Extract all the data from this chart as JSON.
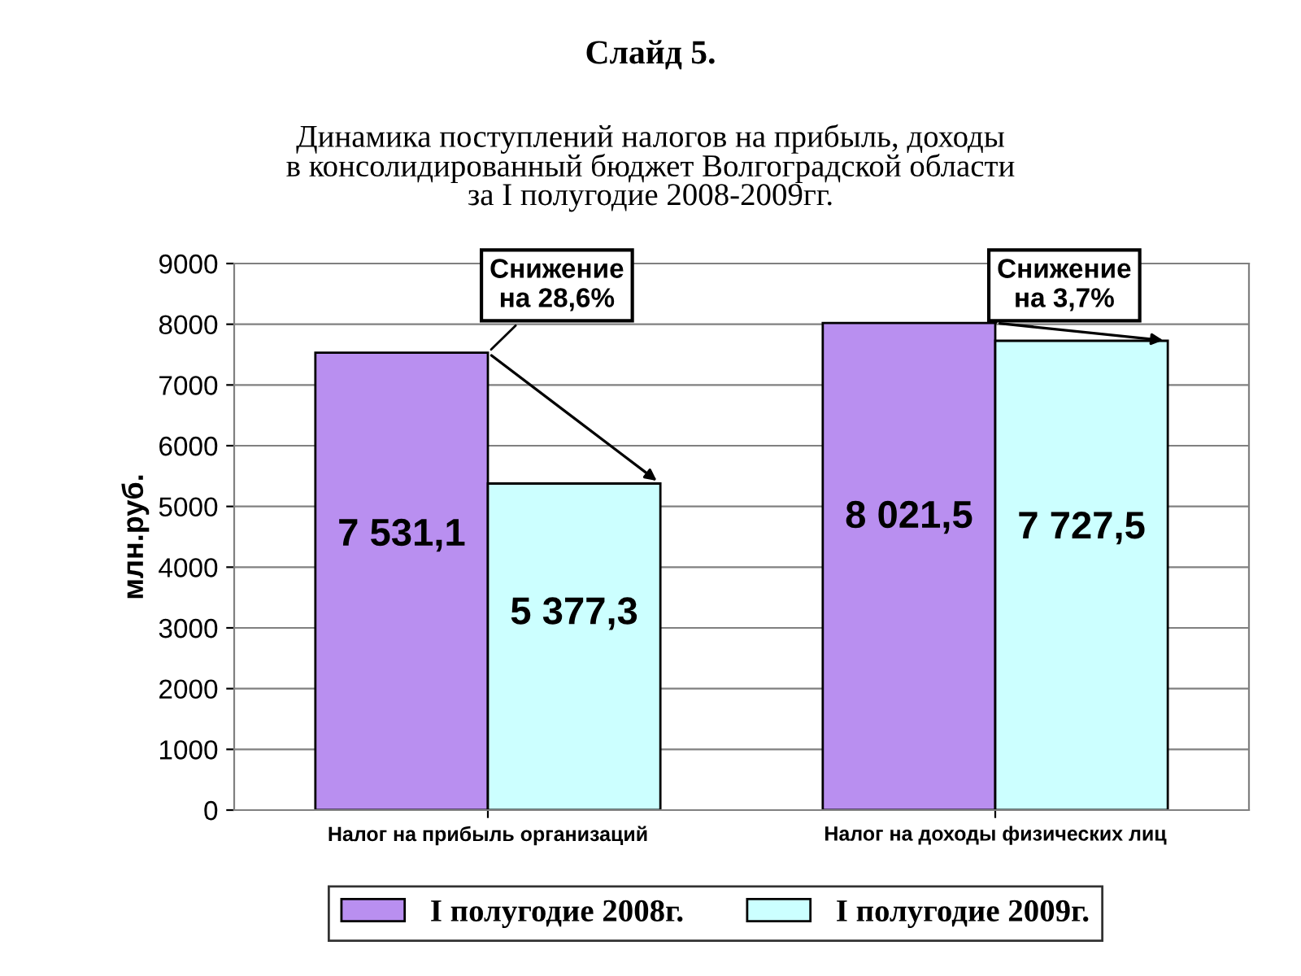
{
  "chart_data": {
    "type": "bar",
    "title": "Слайд 5.",
    "subtitle": "Динамика поступлений налогов на прибыль, доходы\nв консолидированный бюджет Волгоградской области\nза I полугодие 2008-2009гг.",
    "ylabel": "млн.руб.",
    "categories": [
      "Налог на прибыль организаций",
      "Налог на доходы физических лиц"
    ],
    "series": [
      {
        "name": "I полугодие 2008г.",
        "color": "#b98ff0",
        "values": [
          7531.1,
          8021.5
        ],
        "value_labels": [
          "7 531,1",
          "8 021,5"
        ]
      },
      {
        "name": "I полугодие 2009г.",
        "color": "#ccffff",
        "values": [
          5377.3,
          7727.5
        ],
        "value_labels": [
          "5 377,3",
          "7 727,5"
        ]
      }
    ],
    "ylim": [
      0,
      9000
    ],
    "yticks": [
      0,
      1000,
      2000,
      3000,
      4000,
      5000,
      6000,
      7000,
      8000,
      9000
    ],
    "grid": "y",
    "legend": "bottom",
    "annotations": [
      {
        "text": "Снижение\nна 28,6%",
        "x": "Налог на прибыль организаций",
        "y": 7531.1
      },
      {
        "text": "Снижение\nна 3,7%",
        "x": "Налог на доходы физических лиц",
        "y": 8021.5
      }
    ]
  }
}
